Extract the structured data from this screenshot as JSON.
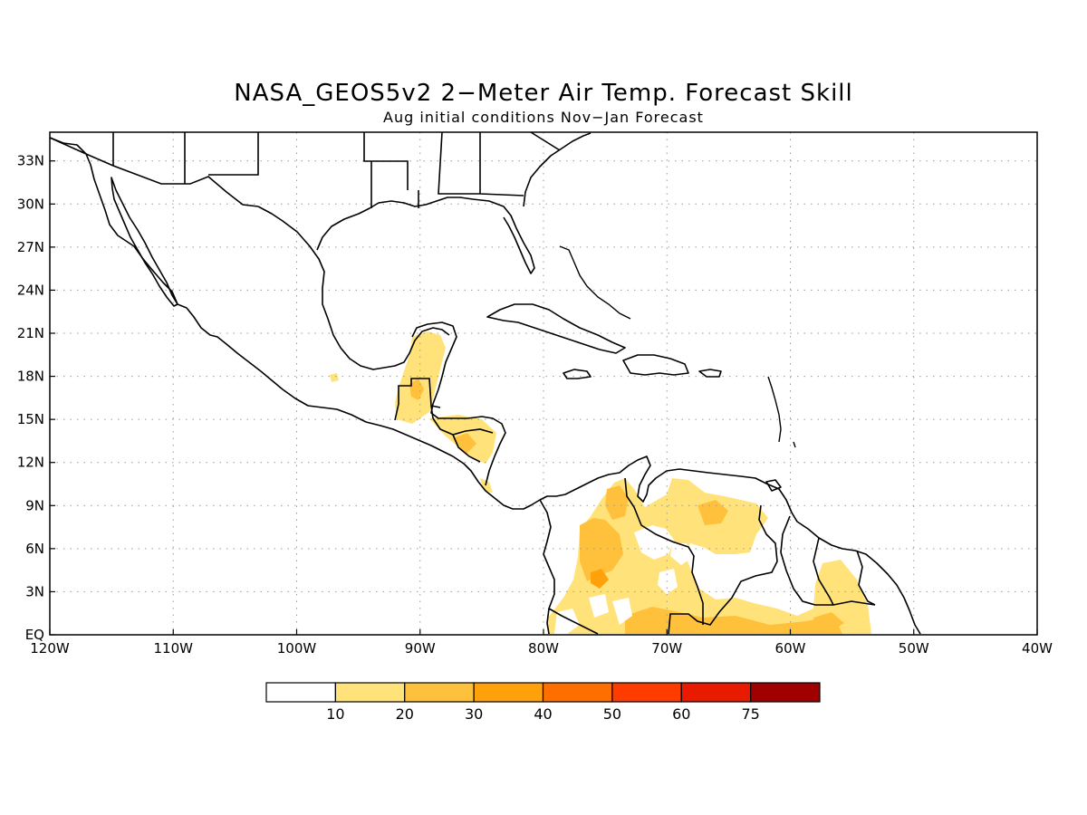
{
  "title": "NASA_GEOS5v2 2−Meter Air Temp. Forecast Skill",
  "subtitle": "Aug initial conditions  Nov−Jan Forecast",
  "map": {
    "lon_range": [
      -120,
      -40
    ],
    "lat_range": [
      0,
      35
    ],
    "lon_ticks": [
      {
        "value": -120,
        "label": "120W"
      },
      {
        "value": -110,
        "label": "110W"
      },
      {
        "value": -100,
        "label": "100W"
      },
      {
        "value": -90,
        "label": "90W"
      },
      {
        "value": -80,
        "label": "80W"
      },
      {
        "value": -70,
        "label": "70W"
      },
      {
        "value": -60,
        "label": "60W"
      },
      {
        "value": -50,
        "label": "50W"
      },
      {
        "value": -40,
        "label": "40W"
      }
    ],
    "lat_ticks": [
      {
        "value": 0,
        "label": "EQ"
      },
      {
        "value": 3,
        "label": "3N"
      },
      {
        "value": 6,
        "label": "6N"
      },
      {
        "value": 9,
        "label": "9N"
      },
      {
        "value": 12,
        "label": "12N"
      },
      {
        "value": 15,
        "label": "15N"
      },
      {
        "value": 18,
        "label": "18N"
      },
      {
        "value": 21,
        "label": "21N"
      },
      {
        "value": 24,
        "label": "24N"
      },
      {
        "value": 27,
        "label": "27N"
      },
      {
        "value": 30,
        "label": "30N"
      },
      {
        "value": 33,
        "label": "33N"
      }
    ],
    "grid": true
  },
  "colorbar": {
    "colors": [
      "#ffffff",
      "#ffe37a",
      "#ffc13c",
      "#ffa10a",
      "#ff6f00",
      "#ff3c00",
      "#e81a00",
      "#a00000"
    ],
    "labels": [
      "10",
      "20",
      "30",
      "40",
      "50",
      "60",
      "75"
    ]
  },
  "skill_regions": [
    {
      "name": "Yucatan-Guatemala",
      "color": "#ffe37a"
    },
    {
      "name": "Central America",
      "color": "#ffe37a"
    },
    {
      "name": "Colombia",
      "color": "#ffc13c"
    },
    {
      "name": "Venezuela",
      "color": "#ffe37a"
    },
    {
      "name": "Amazon",
      "color": "#ffe37a"
    },
    {
      "name": "Guianas",
      "color": "#ffe37a"
    }
  ]
}
